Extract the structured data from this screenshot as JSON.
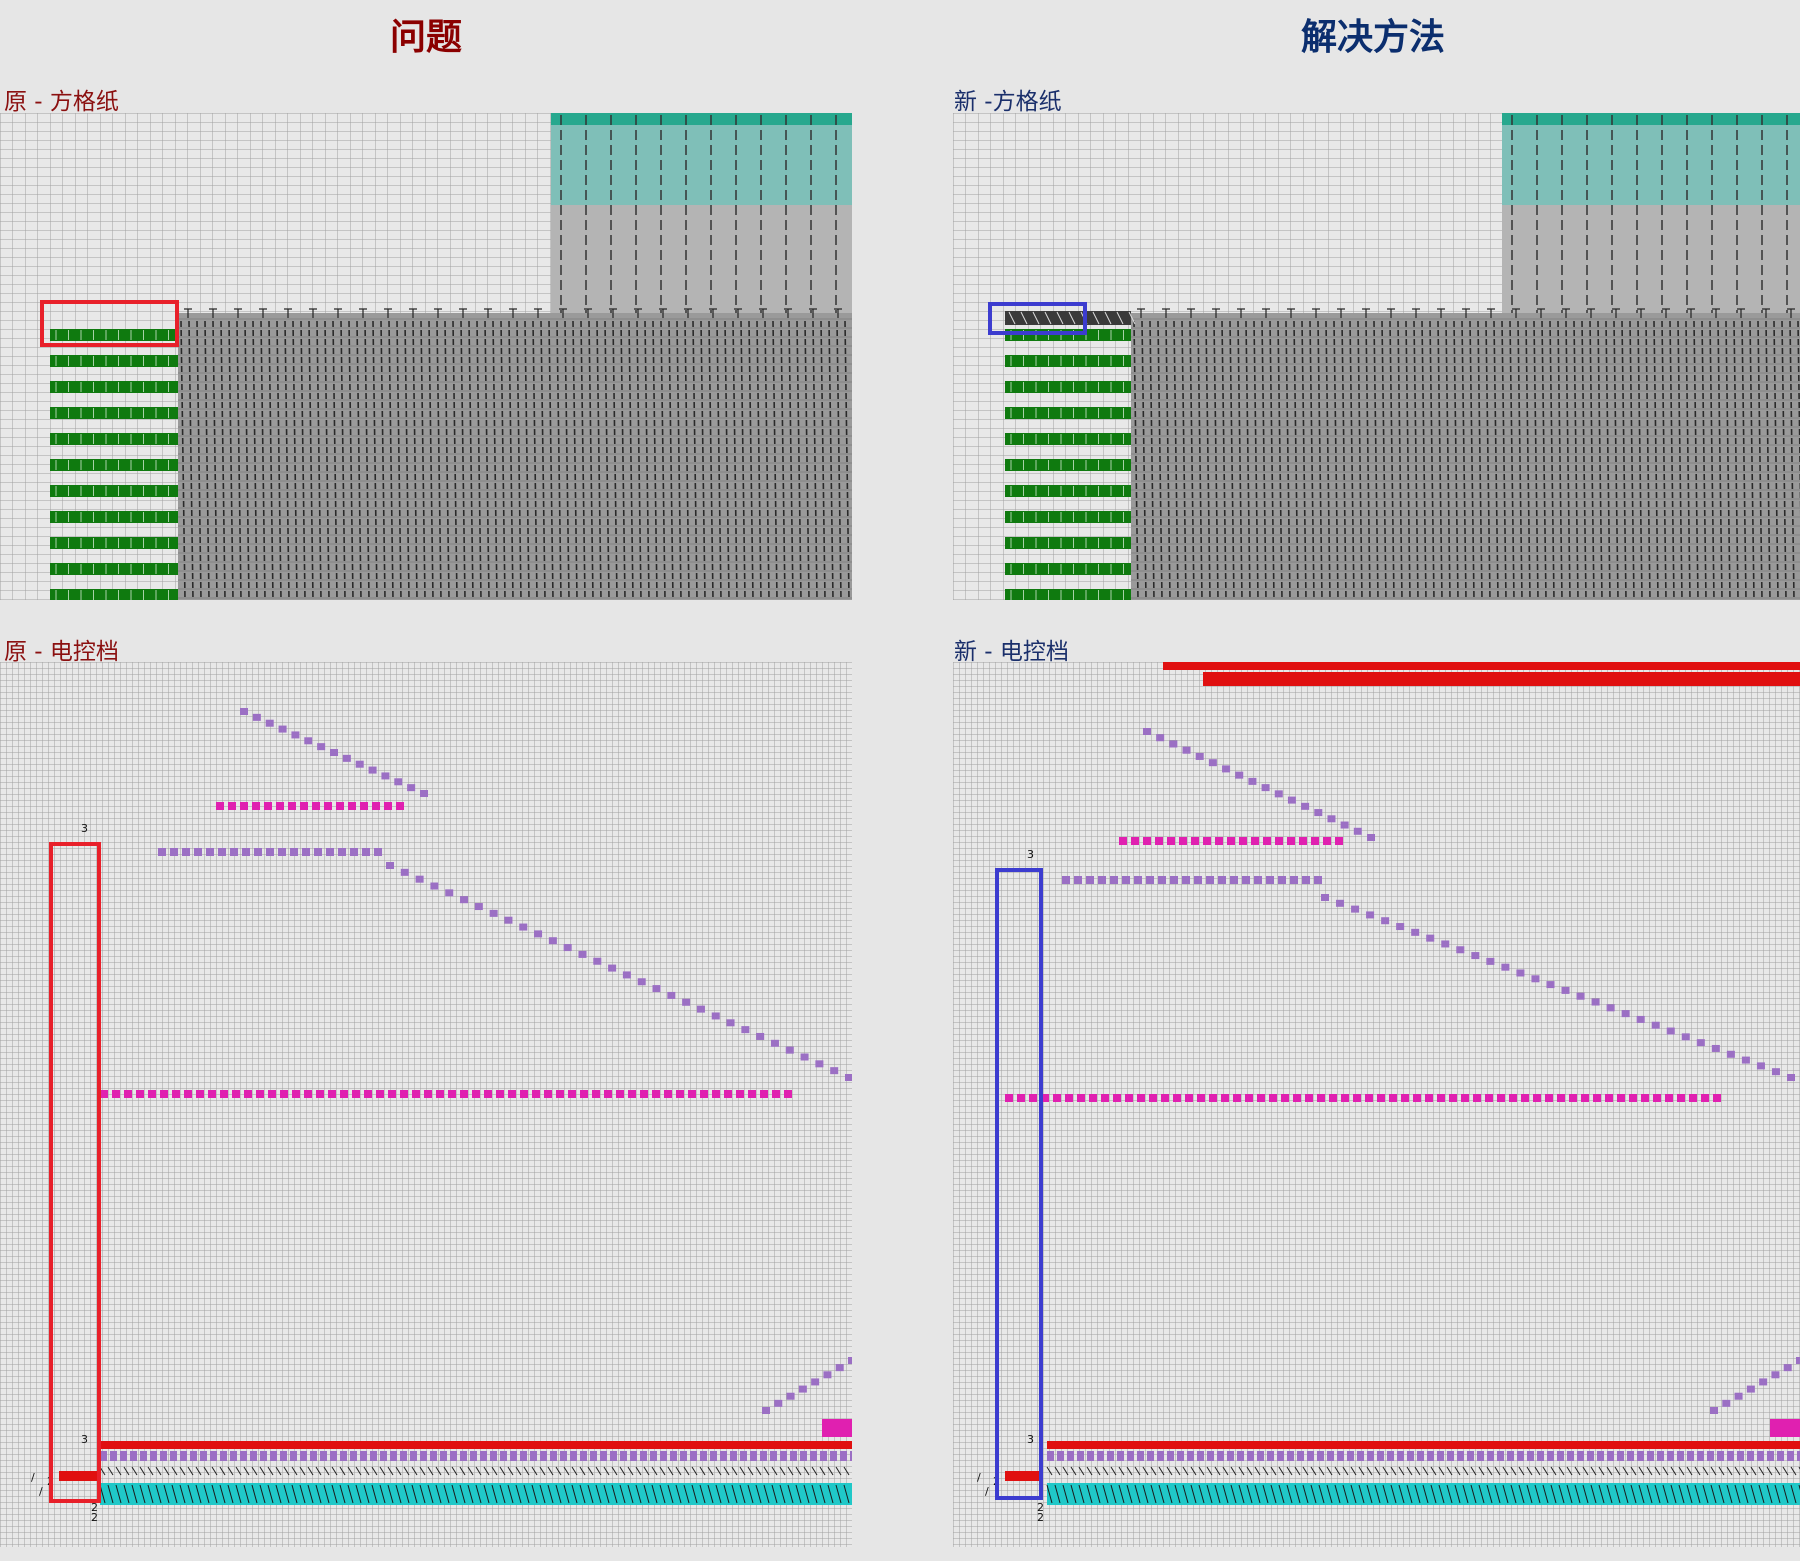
{
  "titles": {
    "problem": "问题",
    "solution": "解决方法"
  },
  "panels": {
    "orig_grid": "原 - 方格纸",
    "new_grid": "新 -方格纸",
    "orig_ctrl": "原 - 电控档",
    "new_ctrl": "新 - 电控档"
  },
  "colors": {
    "background": "#e6e6e6",
    "grid_bg": "#e8e8e8",
    "grid_line": "#a0a0a0",
    "teal_block": "#7fbfb8",
    "teal_header": "#27a88e",
    "gray_block": "#b4b4b4",
    "dark_pattern": "#9a9a9a",
    "green_stripe": "#0f7a0f",
    "problem_highlight": "#e8202a",
    "solution_highlight": "#3c3ccf",
    "purple_mark": "#9b6fc4",
    "magenta_mark": "#e020b0",
    "red_band": "#e01010",
    "cyan_band": "#20c8c8"
  },
  "markers": {
    "three": "3",
    "two": "2",
    "slash": "/"
  }
}
